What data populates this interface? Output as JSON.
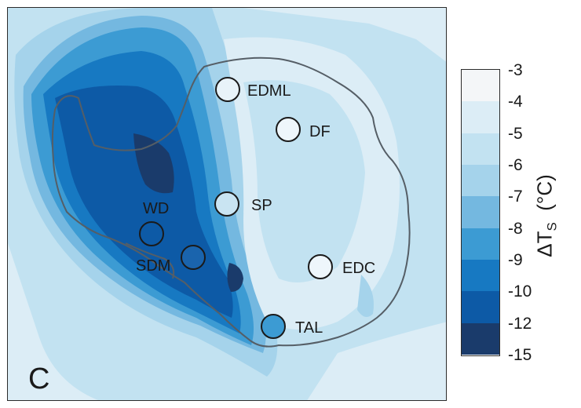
{
  "panel_label": "C",
  "colorbar": {
    "label_main": "ΔT",
    "label_sub": "S",
    "label_unit": "(°C)",
    "ticks": [
      "-3",
      "-4",
      "-5",
      "-6",
      "-7",
      "-8",
      "-9",
      "-10",
      "-12",
      "-15"
    ],
    "colors": [
      "#f4f6f8",
      "#dcedf6",
      "#c2e2f1",
      "#a5d3eb",
      "#74b8e0",
      "#3c9bd3",
      "#1779c2",
      "#0d5aa6",
      "#1a3b6b"
    ]
  },
  "sites": [
    {
      "name": "EDML",
      "fill": "#e8f3f9"
    },
    {
      "name": "DF",
      "fill": "#eef6fb"
    },
    {
      "name": "SP",
      "fill": "#c9e4f2"
    },
    {
      "name": "WD",
      "fill": "#0d5aa6"
    },
    {
      "name": "SDM",
      "fill": "#1a64ad"
    },
    {
      "name": "EDC",
      "fill": "#eef6fb"
    },
    {
      "name": "TAL",
      "fill": "#3c9bd3"
    }
  ]
}
